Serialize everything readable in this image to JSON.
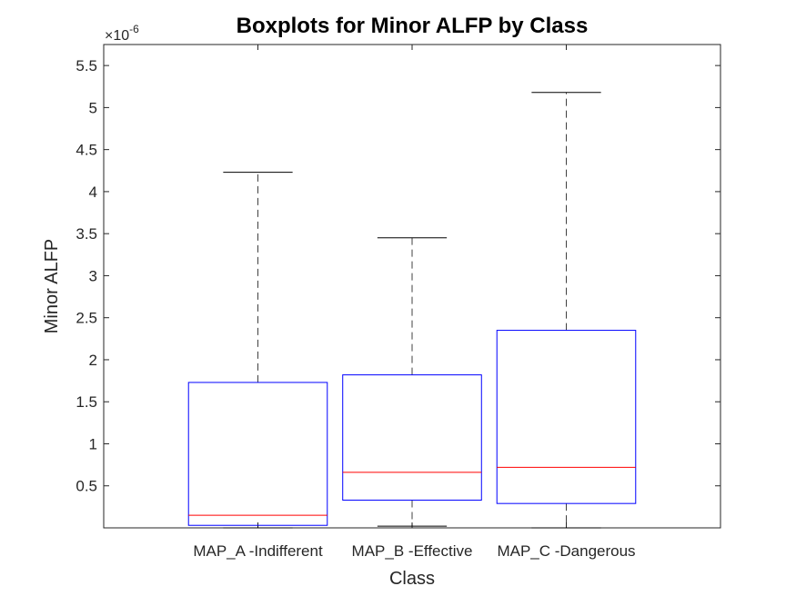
{
  "chart_data": {
    "type": "boxplot",
    "title": "Boxplots for Minor ALFP by Class",
    "xlabel": "Class",
    "ylabel": "Minor ALFP",
    "y_exponent_label": "×10",
    "y_exponent_power": "-6",
    "y_scale": 1e-06,
    "ylim": [
      0.0,
      5.75
    ],
    "yticks": [
      0.5,
      1,
      1.5,
      2,
      2.5,
      3,
      3.5,
      4,
      4.5,
      5,
      5.5
    ],
    "ytick_labels": [
      "0.5",
      "1",
      "1.5",
      "2",
      "2.5",
      "3",
      "3.5",
      "4",
      "4.5",
      "5",
      "5.5"
    ],
    "categories": [
      "MAP_A -Indifferent",
      "MAP_B -Effective",
      "MAP_C -Dangerous"
    ],
    "boxes": [
      {
        "whisker_low": 0.0,
        "q1": 0.03,
        "median": 0.15,
        "q3": 1.73,
        "whisker_high": 4.23
      },
      {
        "whisker_low": 0.02,
        "q1": 0.33,
        "median": 0.66,
        "q3": 1.82,
        "whisker_high": 3.45
      },
      {
        "whisker_low": 0.0,
        "q1": 0.29,
        "median": 0.72,
        "q3": 2.35,
        "whisker_high": 5.18
      }
    ],
    "grid": false,
    "colors": {
      "box": "#0000ff",
      "median": "#ff0000",
      "whisker": "#000000",
      "axes": "#262626"
    }
  }
}
